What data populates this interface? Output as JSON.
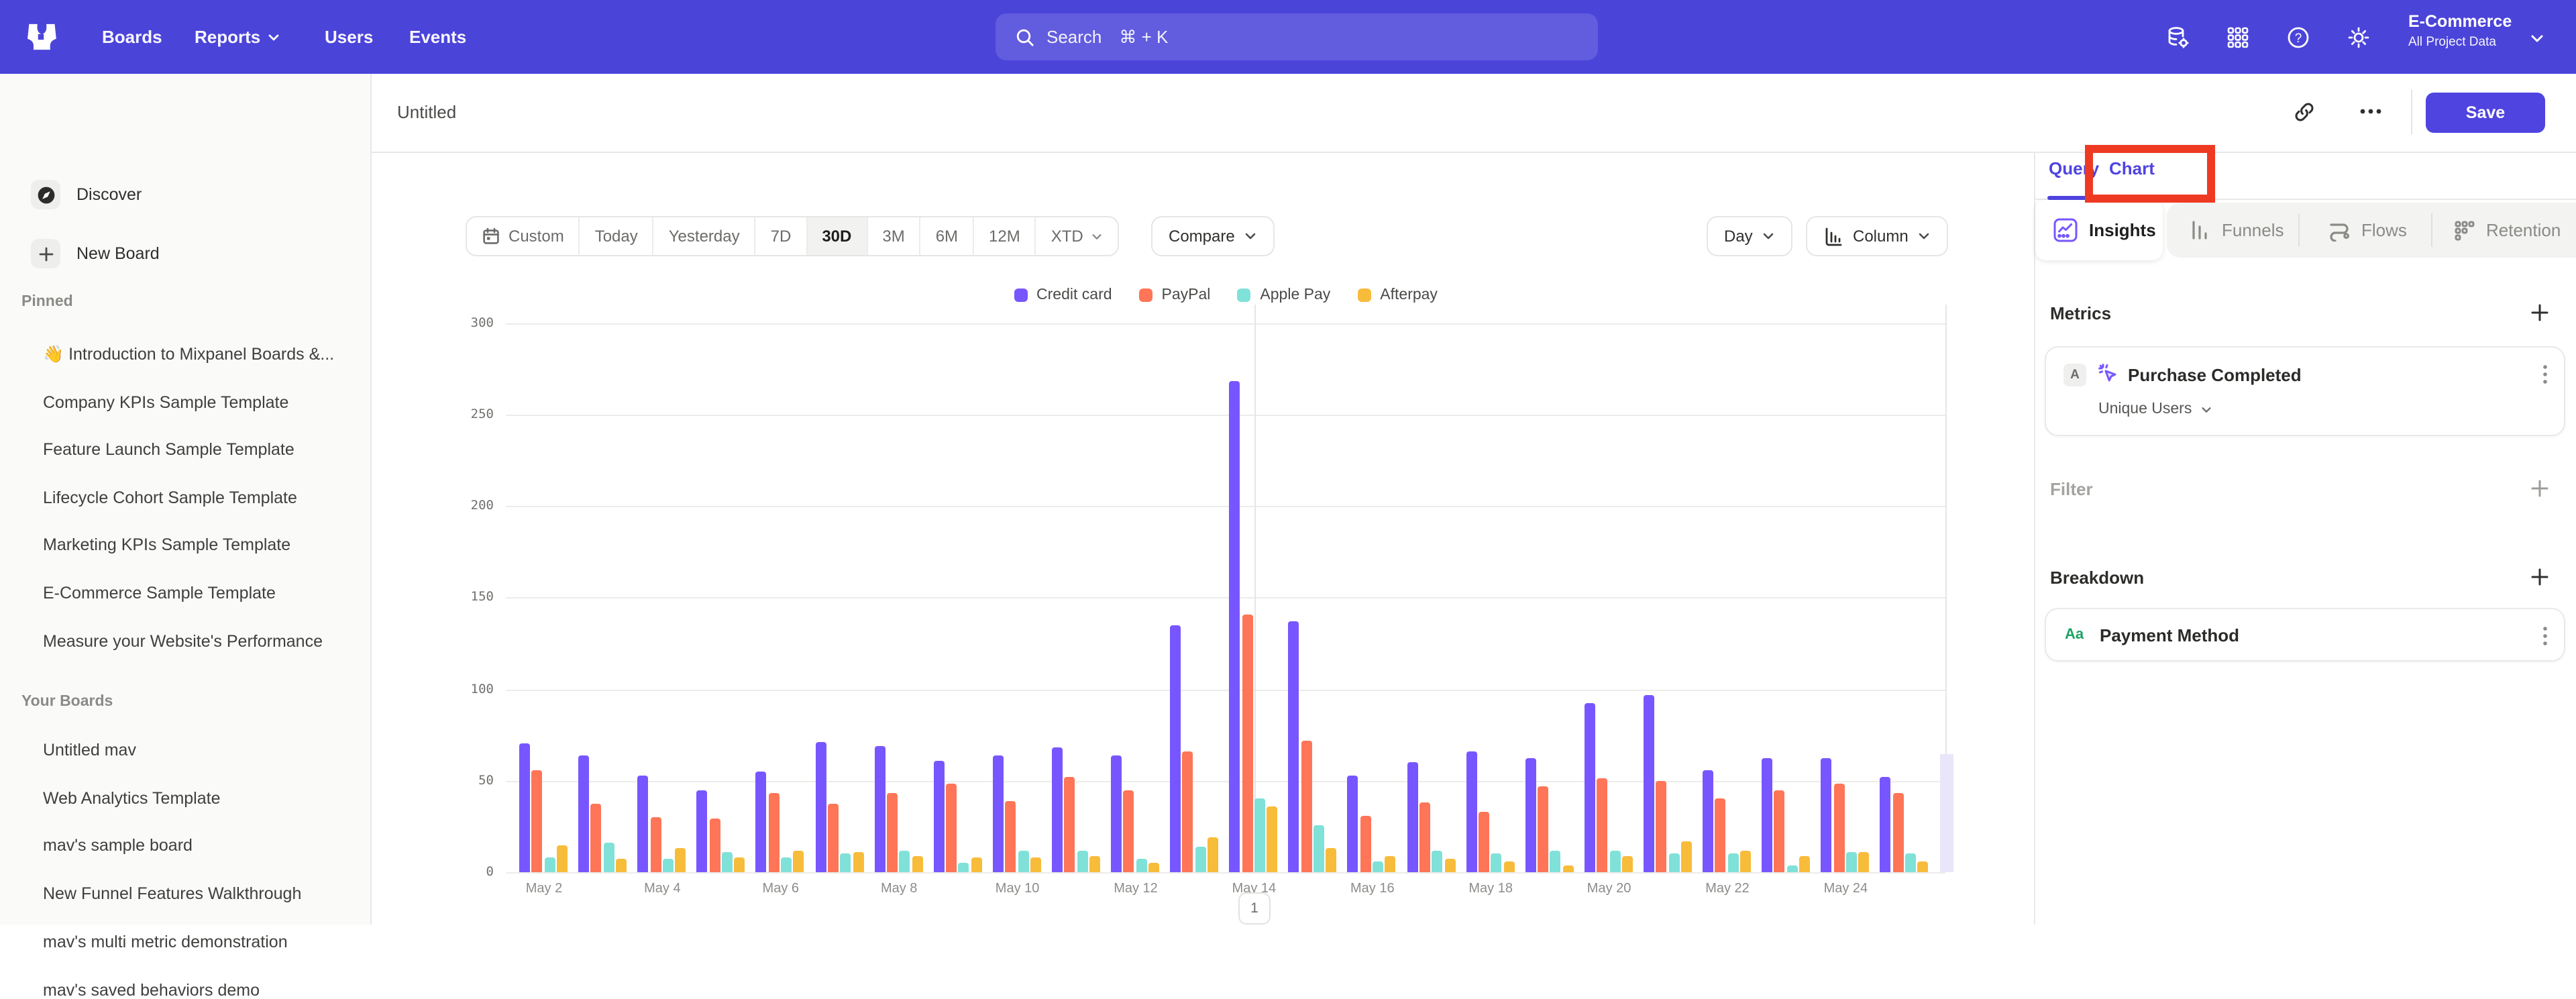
{
  "colors": {
    "nav": "#4B44D9",
    "accent": "#4F44E0",
    "annotation_red": "#EE3A23",
    "insights_icon": "#7856FF"
  },
  "topnav": {
    "menu": [
      "Boards",
      "Reports",
      "Users",
      "Events"
    ],
    "search": {
      "placeholder": "Search",
      "shortcut": "⌘ + K"
    },
    "project": {
      "name": "E-Commerce",
      "scope": "All Project Data"
    }
  },
  "header": {
    "title": "Untitled",
    "save_label": "Save"
  },
  "sidebar": {
    "discover_label": "Discover",
    "new_board_label": "New Board",
    "pinned_label": "Pinned",
    "pinned": [
      "👋 Introduction to Mixpanel Boards &...",
      "Company KPIs Sample Template",
      "Feature Launch Sample Template",
      "Lifecycle Cohort Sample Template",
      "Marketing KPIs Sample Template",
      "E-Commerce Sample Template",
      "Measure your Website's Performance"
    ],
    "your_boards_label": "Your Boards",
    "your_boards": [
      "Untitled mav",
      "Web Analytics Template",
      "mav's sample board",
      "New Funnel Features Walkthrough",
      "mav's multi metric demonstration",
      "mav's saved behaviors demo"
    ]
  },
  "toolbar": {
    "ranges": [
      "Custom",
      "Today",
      "Yesterday",
      "7D",
      "30D",
      "3M",
      "6M",
      "12M",
      "XTD"
    ],
    "active_range": "30D",
    "compare_label": "Compare",
    "granularity_label": "Day",
    "chart_type_label": "Column"
  },
  "panel": {
    "tabs": {
      "query": "Query",
      "chart": "Chart"
    },
    "report_tabs": {
      "insights": "Insights",
      "funnels": "Funnels",
      "flows": "Flows",
      "retention": "Retention"
    },
    "metrics_label": "Metrics",
    "metric": {
      "badge": "A",
      "name": "Purchase Completed",
      "aggregation": "Unique Users"
    },
    "filter_label": "Filter",
    "breakdown_label": "Breakdown",
    "breakdown": {
      "icon": "Aa",
      "name": "Payment Method"
    }
  },
  "pagination": {
    "page": "1"
  },
  "chart_data": {
    "type": "bar",
    "title": "",
    "xlabel": "",
    "ylabel": "",
    "ylim": [
      0,
      300
    ],
    "yticks": [
      0,
      50,
      100,
      150,
      200,
      250,
      300
    ],
    "grid": "horizontal",
    "legend_position": "top",
    "x_tick_every": 2,
    "vertical_gridline_at": "May 14",
    "categories": [
      "May 2",
      "May 3",
      "May 4",
      "May 5",
      "May 6",
      "May 7",
      "May 8",
      "May 9",
      "May 10",
      "May 11",
      "May 12",
      "May 13",
      "May 14",
      "May 15",
      "May 16",
      "May 17",
      "May 18",
      "May 19",
      "May 20",
      "May 21",
      "May 22",
      "May 23",
      "May 24",
      "May 25"
    ],
    "series": [
      {
        "name": "Credit card",
        "color": "#7856FF",
        "values": [
          70,
          64,
          53,
          45,
          55,
          71,
          69,
          61,
          64,
          68,
          64,
          135,
          268,
          137,
          53,
          60,
          66,
          62,
          92,
          97,
          56,
          62,
          62,
          52
        ]
      },
      {
        "name": "PayPal",
        "color": "#FF7557",
        "values": [
          56,
          37,
          30,
          29,
          43,
          37,
          43,
          48,
          39,
          52,
          45,
          66,
          141,
          72,
          31,
          38,
          33,
          47,
          51,
          50,
          40,
          45,
          48,
          43
        ]
      },
      {
        "name": "Apple Pay",
        "color": "#80E1D9",
        "values": [
          8,
          16,
          7,
          11,
          8,
          10,
          12,
          5,
          12,
          12,
          7,
          14,
          40,
          26,
          6,
          12,
          10,
          12,
          12,
          10,
          10,
          4,
          11,
          10
        ]
      },
      {
        "name": "Afterpay",
        "color": "#F8BC3B",
        "values": [
          15,
          7,
          13,
          8,
          12,
          11,
          9,
          8,
          8,
          9,
          5,
          19,
          36,
          13,
          9,
          7,
          6,
          4,
          9,
          17,
          12,
          9,
          11,
          6
        ]
      }
    ],
    "partial_next_bar": {
      "series": "Credit card",
      "value": 63
    }
  }
}
